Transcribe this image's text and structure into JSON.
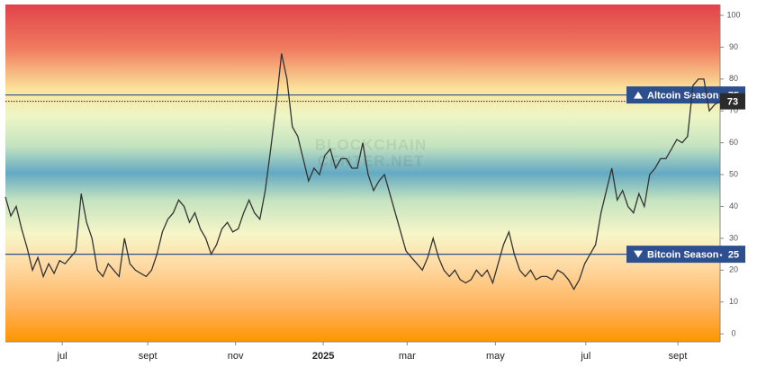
{
  "chart_data": {
    "type": "line",
    "watermark": [
      "BLOCKCHAIN",
      "CENTER.NET"
    ],
    "values": [
      43,
      37,
      40,
      33,
      27,
      20,
      24,
      18,
      22,
      19,
      23,
      22,
      24,
      26,
      44,
      35,
      30,
      20,
      18,
      22,
      20,
      18,
      30,
      22,
      20,
      19,
      18,
      20,
      25,
      32,
      36,
      38,
      42,
      40,
      35,
      38,
      33,
      30,
      25,
      28,
      33,
      35,
      32,
      33,
      38,
      42,
      38,
      36,
      45,
      58,
      72,
      88,
      80,
      65,
      62,
      55,
      48,
      52,
      50,
      56,
      58,
      52,
      55,
      55,
      52,
      52,
      60,
      50,
      45,
      48,
      50,
      44,
      38,
      32,
      26,
      24,
      22,
      20,
      24,
      30,
      24,
      20,
      18,
      20,
      17,
      16,
      17,
      20,
      18,
      20,
      16,
      22,
      28,
      32,
      25,
      20,
      18,
      20,
      17,
      18,
      18,
      17,
      20,
      19,
      17,
      14,
      17,
      22,
      25,
      28,
      38,
      45,
      52,
      42,
      45,
      40,
      38,
      44,
      40,
      50,
      52,
      55,
      55,
      58,
      61,
      60,
      62,
      78,
      80,
      80,
      70,
      72,
      73
    ],
    "color": "#333333",
    "xlim": [
      0,
      132
    ],
    "xticks": [
      {
        "value": 10.5,
        "label": "jul"
      },
      {
        "value": 26.3,
        "label": "sept"
      },
      {
        "value": 42.5,
        "label": "nov"
      },
      {
        "value": 58.7,
        "label": "2025"
      },
      {
        "value": 74.2,
        "label": "mar"
      },
      {
        "value": 90.5,
        "label": "may"
      },
      {
        "value": 107.2,
        "label": "jul"
      },
      {
        "value": 124.2,
        "label": "sept"
      }
    ],
    "ylim": [
      -2.5,
      103.4
    ],
    "yticks": [
      0,
      10,
      20,
      30,
      40,
      50,
      60,
      70,
      80,
      90,
      100
    ],
    "reference_lines": [
      {
        "label": "Altcoin Season",
        "value": 75,
        "color": "#2d4f8e"
      },
      {
        "label": "Bitcoin Season",
        "value": 25,
        "color": "#2d4f8e"
      }
    ],
    "current": 73
  }
}
